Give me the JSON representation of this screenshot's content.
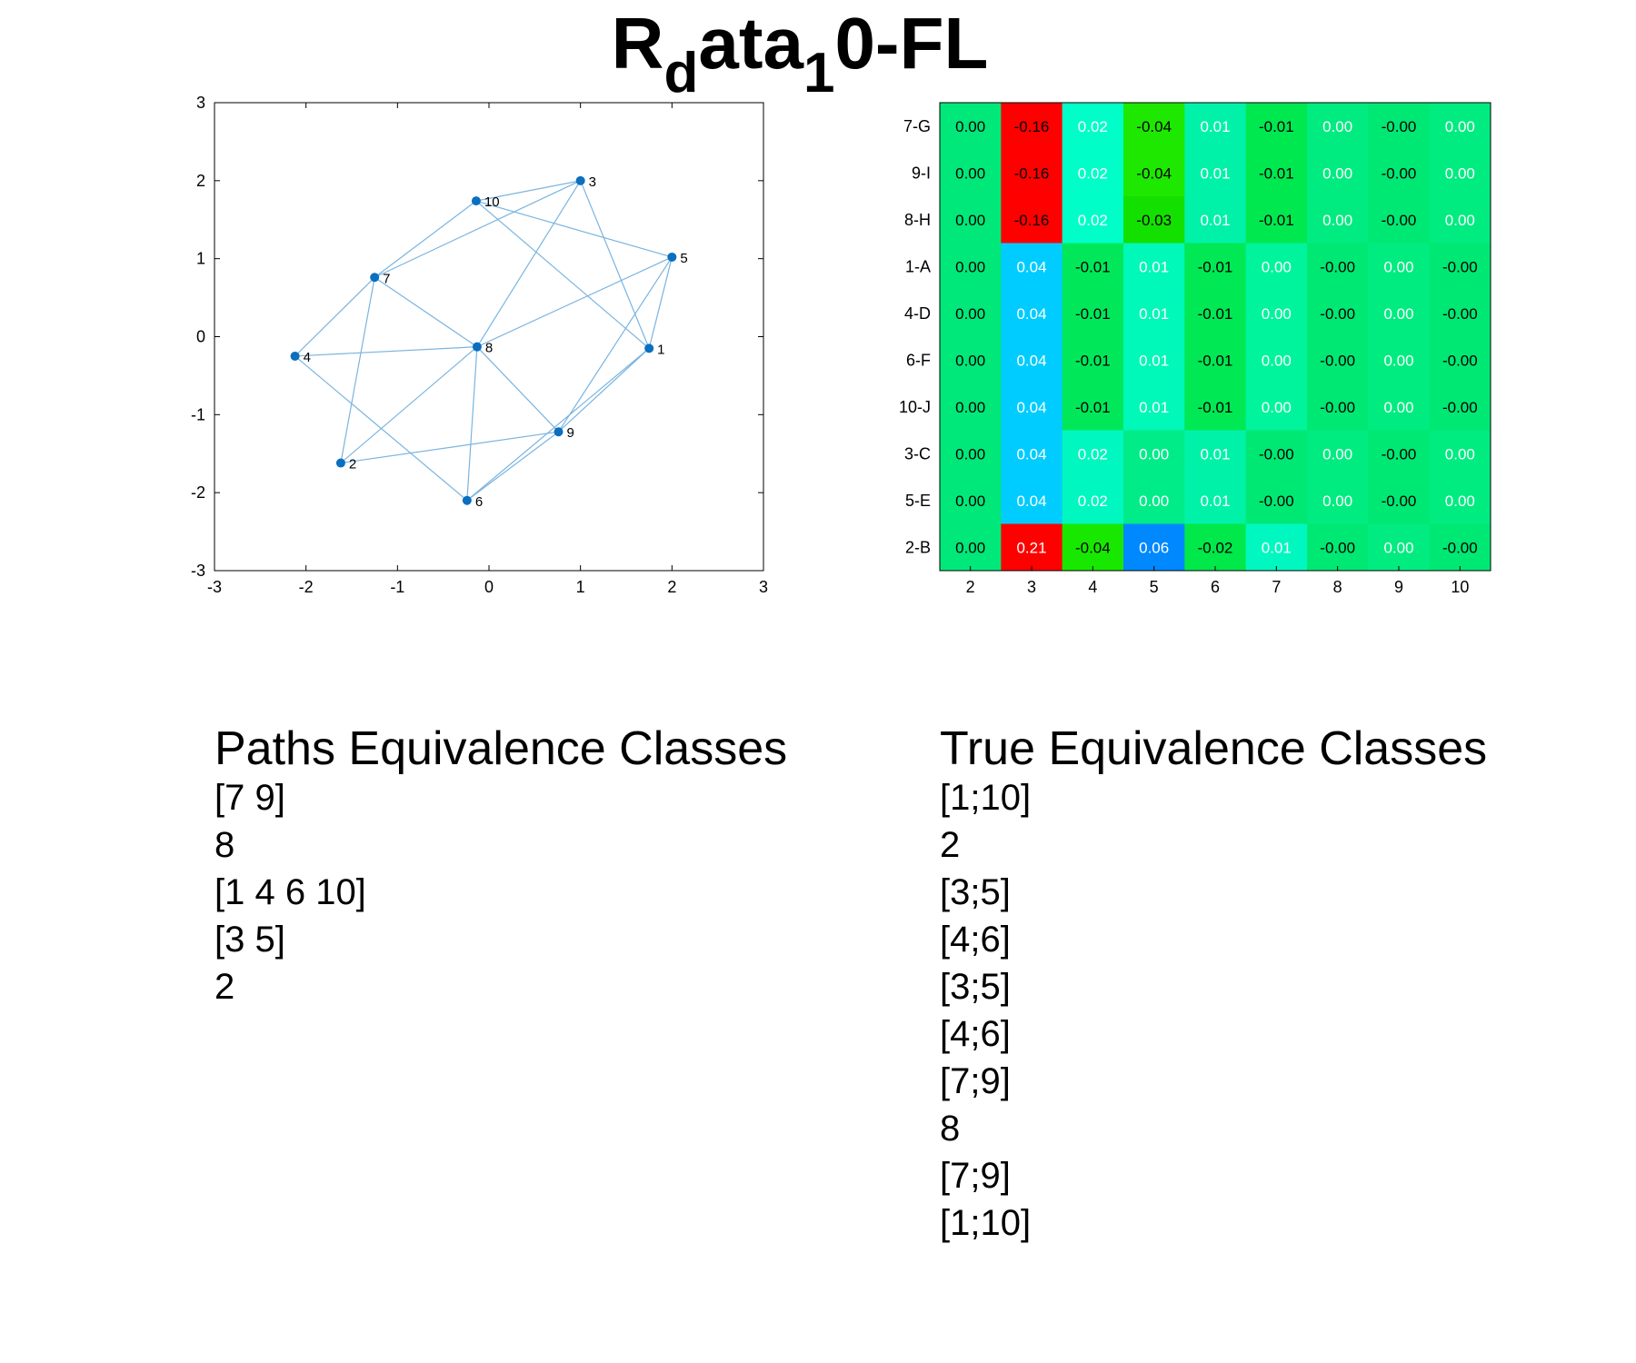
{
  "title": {
    "base": "R",
    "sub1": "d",
    "mid": "ata",
    "sub2": "1",
    "end": "0-FL"
  },
  "colors": {
    "edge": "#7ab4e0",
    "node": "#0a6fbf",
    "axis": "#000000"
  },
  "chart_data": [
    {
      "type": "scatter",
      "subtype": "network-graph",
      "xlim": [
        -3,
        3
      ],
      "ylim": [
        -3,
        3
      ],
      "xticks": [
        -3,
        -2,
        -1,
        0,
        1,
        2,
        3
      ],
      "yticks": [
        -3,
        -2,
        -1,
        0,
        1,
        2,
        3
      ],
      "grid": false,
      "nodes": [
        {
          "id": "1",
          "x": 1.75,
          "y": -0.15
        },
        {
          "id": "2",
          "x": -1.62,
          "y": -1.62
        },
        {
          "id": "3",
          "x": 1.0,
          "y": 2.0
        },
        {
          "id": "4",
          "x": -2.12,
          "y": -0.25
        },
        {
          "id": "5",
          "x": 2.0,
          "y": 1.02
        },
        {
          "id": "6",
          "x": -0.24,
          "y": -2.1
        },
        {
          "id": "7",
          "x": -1.25,
          "y": 0.76
        },
        {
          "id": "8",
          "x": -0.13,
          "y": -0.13
        },
        {
          "id": "9",
          "x": 0.76,
          "y": -1.22
        },
        {
          "id": "10",
          "x": -0.14,
          "y": 1.74
        }
      ],
      "edges": [
        [
          "10",
          "3"
        ],
        [
          "10",
          "5"
        ],
        [
          "10",
          "7"
        ],
        [
          "10",
          "1"
        ],
        [
          "3",
          "7"
        ],
        [
          "3",
          "8"
        ],
        [
          "3",
          "1"
        ],
        [
          "5",
          "1"
        ],
        [
          "5",
          "8"
        ],
        [
          "5",
          "9"
        ],
        [
          "7",
          "4"
        ],
        [
          "7",
          "2"
        ],
        [
          "7",
          "8"
        ],
        [
          "4",
          "8"
        ],
        [
          "4",
          "6"
        ],
        [
          "8",
          "2"
        ],
        [
          "8",
          "9"
        ],
        [
          "8",
          "6"
        ],
        [
          "2",
          "9"
        ],
        [
          "9",
          "6"
        ],
        [
          "1",
          "9"
        ],
        [
          "1",
          "6"
        ]
      ]
    },
    {
      "type": "heatmap",
      "rows": [
        "7-G",
        "9-I",
        "8-H",
        "1-A",
        "4-D",
        "6-F",
        "10-J",
        "3-C",
        "5-E",
        "2-B"
      ],
      "cols": [
        "2",
        "3",
        "4",
        "5",
        "6",
        "7",
        "8",
        "9",
        "10"
      ],
      "labels": [
        [
          "0.00",
          "-0.16",
          "0.02",
          "-0.04",
          "0.01",
          "-0.01",
          "0.00",
          "-0.00",
          "0.00"
        ],
        [
          "0.00",
          "-0.16",
          "0.02",
          "-0.04",
          "0.01",
          "-0.01",
          "0.00",
          "-0.00",
          "0.00"
        ],
        [
          "0.00",
          "-0.16",
          "0.02",
          "-0.03",
          "0.01",
          "-0.01",
          "0.00",
          "-0.00",
          "0.00"
        ],
        [
          "0.00",
          "0.04",
          "-0.01",
          "0.01",
          "-0.01",
          "0.00",
          "-0.00",
          "0.00",
          "-0.00"
        ],
        [
          "0.00",
          "0.04",
          "-0.01",
          "0.01",
          "-0.01",
          "0.00",
          "-0.00",
          "0.00",
          "-0.00"
        ],
        [
          "0.00",
          "0.04",
          "-0.01",
          "0.01",
          "-0.01",
          "0.00",
          "-0.00",
          "0.00",
          "-0.00"
        ],
        [
          "0.00",
          "0.04",
          "-0.01",
          "0.01",
          "-0.01",
          "0.00",
          "-0.00",
          "0.00",
          "-0.00"
        ],
        [
          "0.00",
          "0.04",
          "0.02",
          "0.00",
          "0.01",
          "-0.00",
          "0.00",
          "-0.00",
          "0.00"
        ],
        [
          "0.00",
          "0.04",
          "0.02",
          "0.00",
          "0.01",
          "-0.00",
          "0.00",
          "-0.00",
          "0.00"
        ],
        [
          "0.00",
          "0.21",
          "-0.04",
          "0.06",
          "-0.02",
          "0.01",
          "-0.00",
          "0.00",
          "-0.00"
        ]
      ],
      "cell_colors": [
        [
          "#00e87a",
          "#ff0000",
          "#00ffc8",
          "#1ee800",
          "#00f2a8",
          "#00e850",
          "#00ec80",
          "#00e874",
          "#00ec80"
        ],
        [
          "#00e87a",
          "#ff0000",
          "#00ffc8",
          "#1ee800",
          "#00f2a8",
          "#00e850",
          "#00ec80",
          "#00e874",
          "#00ec80"
        ],
        [
          "#00e87a",
          "#ff0000",
          "#00ffc8",
          "#14e000",
          "#00f2a8",
          "#00e850",
          "#00ec80",
          "#00e874",
          "#00ec80"
        ],
        [
          "#00e87a",
          "#00ccff",
          "#00e85a",
          "#00f8b8",
          "#00e854",
          "#00f49c",
          "#00e874",
          "#00ec80",
          "#00e874"
        ],
        [
          "#00e87a",
          "#00ccff",
          "#00e85a",
          "#00f8b8",
          "#00e854",
          "#00f49c",
          "#00e874",
          "#00ec80",
          "#00e874"
        ],
        [
          "#00e87a",
          "#00ccff",
          "#00e85a",
          "#00f8b8",
          "#00e854",
          "#00f49c",
          "#00e874",
          "#00ec80",
          "#00e874"
        ],
        [
          "#00e87a",
          "#00ccff",
          "#00e85a",
          "#00f8b8",
          "#00e854",
          "#00f49c",
          "#00e874",
          "#00ec80",
          "#00e874"
        ],
        [
          "#00e87a",
          "#00ccff",
          "#00f8c0",
          "#00ec88",
          "#00f2a8",
          "#00e874",
          "#00ec80",
          "#00e874",
          "#00ec80"
        ],
        [
          "#00e87a",
          "#00ccff",
          "#00f8c0",
          "#00ec88",
          "#00f2a8",
          "#00e874",
          "#00ec80",
          "#00e874",
          "#00ec80"
        ],
        [
          "#00e87a",
          "#ff0000",
          "#18e800",
          "#0088ff",
          "#00e84a",
          "#00f8c0",
          "#00e874",
          "#00ec80",
          "#00e874"
        ]
      ],
      "text_colors": [
        [
          "#000",
          "#000",
          "#fff",
          "#000",
          "#fff",
          "#000",
          "#fff",
          "#000",
          "#fff"
        ],
        [
          "#000",
          "#000",
          "#fff",
          "#000",
          "#fff",
          "#000",
          "#fff",
          "#000",
          "#fff"
        ],
        [
          "#000",
          "#000",
          "#fff",
          "#000",
          "#fff",
          "#000",
          "#fff",
          "#000",
          "#fff"
        ],
        [
          "#000",
          "#fff",
          "#000",
          "#fff",
          "#000",
          "#fff",
          "#000",
          "#fff",
          "#000"
        ],
        [
          "#000",
          "#fff",
          "#000",
          "#fff",
          "#000",
          "#fff",
          "#000",
          "#fff",
          "#000"
        ],
        [
          "#000",
          "#fff",
          "#000",
          "#fff",
          "#000",
          "#fff",
          "#000",
          "#fff",
          "#000"
        ],
        [
          "#000",
          "#fff",
          "#000",
          "#fff",
          "#000",
          "#fff",
          "#000",
          "#fff",
          "#000"
        ],
        [
          "#000",
          "#fff",
          "#fff",
          "#fff",
          "#fff",
          "#000",
          "#fff",
          "#000",
          "#fff"
        ],
        [
          "#000",
          "#fff",
          "#fff",
          "#fff",
          "#fff",
          "#000",
          "#fff",
          "#000",
          "#fff"
        ],
        [
          "#000",
          "#fff",
          "#000",
          "#fff",
          "#000",
          "#fff",
          "#000",
          "#fff",
          "#000"
        ]
      ]
    }
  ],
  "paths_classes": {
    "heading": "Paths Equivalence Classes",
    "items": [
      "[7 9]",
      "8",
      "[1 4 6 10]",
      "[3 5]",
      "2"
    ]
  },
  "true_classes": {
    "heading": "True Equivalence Classes",
    "items": [
      "[1;10]",
      "2",
      "[3;5]",
      "[4;6]",
      "[3;5]",
      "[4;6]",
      "[7;9]",
      "8",
      "[7;9]",
      "[1;10]"
    ]
  }
}
